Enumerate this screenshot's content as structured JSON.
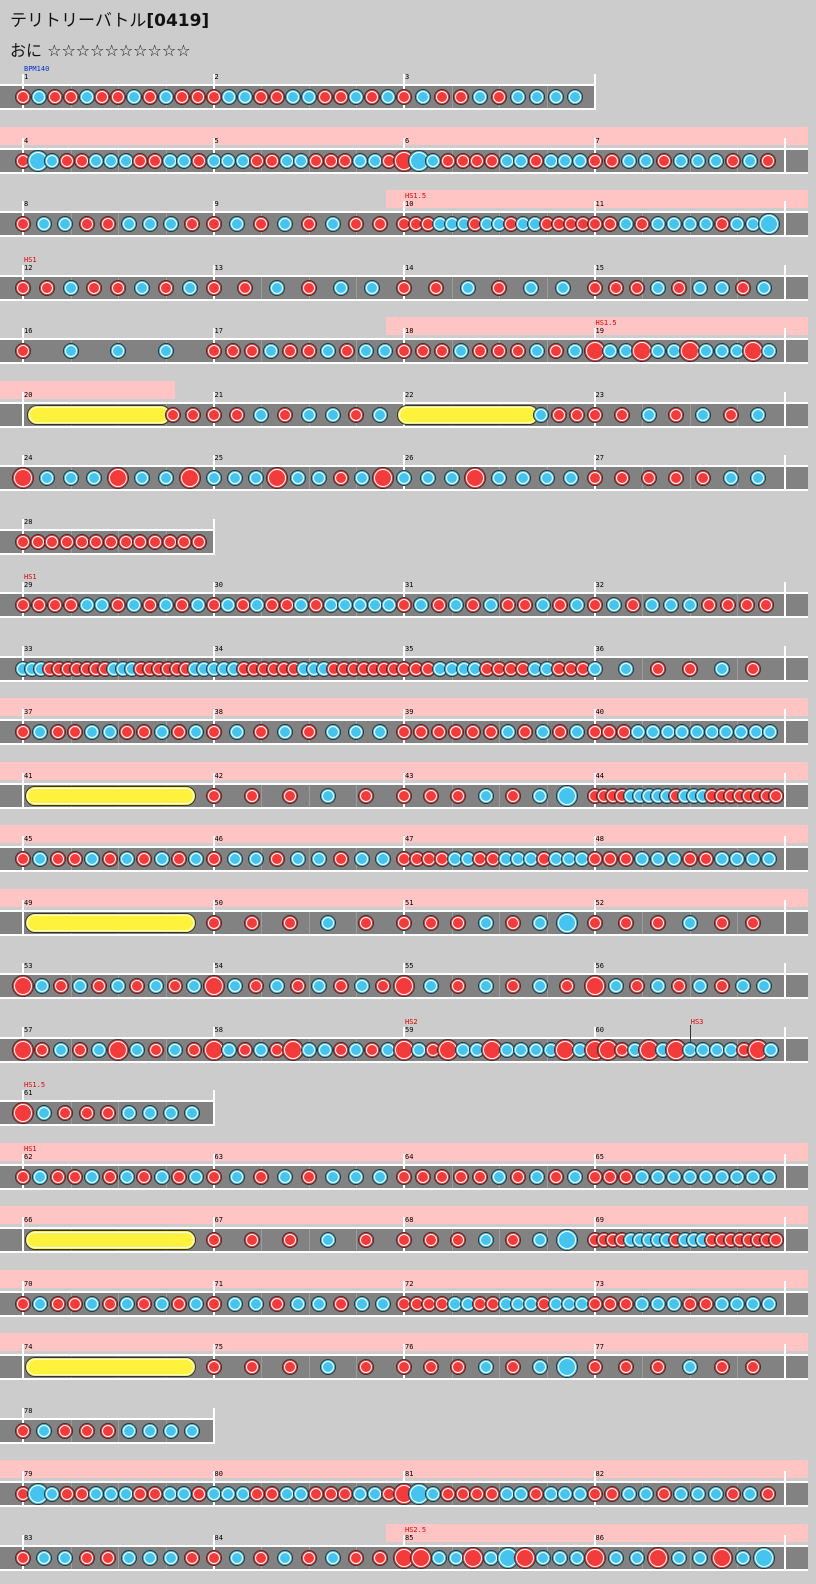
{
  "header": {
    "title": "テリトリーバトル",
    "song_id": "[0419]",
    "difficulty_label": "おに",
    "stars": "☆☆☆☆☆☆☆☆☆☆",
    "star_count": 10
  },
  "colors": {
    "background": "#cccccc",
    "lane": "#828282",
    "highlight": "#ffc4c4",
    "don": "#f43b3b",
    "ka": "#44c4ee",
    "roll": "#fff23c",
    "event_text": "#e00000",
    "bpm_text": "#0030d0"
  },
  "rows": [
    {
      "measures": [
        1,
        2,
        3
      ],
      "events": [
        {
          "m": 1,
          "text": "BPM140",
          "bpm": true
        }
      ],
      "hl": null,
      "end": 3,
      "notes": [
        "1D",
        "1K",
        "1D",
        "1D",
        "1K",
        "1D",
        "1D",
        "1K",
        "1D",
        "1K",
        "1D",
        "1D",
        "2D",
        "2K",
        "2K",
        "2D",
        "2D",
        "2K",
        "2K",
        "2D",
        "2D",
        "2K",
        "2D",
        "2K",
        "3D",
        "3K",
        "3D",
        "3D",
        "3K",
        "3D",
        "3K",
        "3K",
        "3K",
        "3K"
      ]
    },
    {
      "measures": [
        4,
        5,
        6,
        7
      ],
      "events": [],
      "hl": [
        0,
        4
      ],
      "notes": [
        "4D",
        "4BK",
        "4K",
        "4D",
        "4D",
        "4K",
        "4K",
        "4K",
        "4D",
        "4D",
        "4K",
        "4K",
        "4D",
        "5K",
        "5K",
        "5K",
        "5D",
        "5D",
        "5K",
        "5K",
        "5D",
        "5D",
        "5D",
        "5K",
        "5K",
        "5D",
        "6BD",
        "6BK",
        "6K",
        "6D",
        "6D",
        "6D",
        "6D",
        "6K",
        "6K",
        "6D",
        "6K",
        "6K",
        "6K",
        "7D",
        "7D",
        "7K",
        "7K",
        "7D",
        "7K",
        "7K",
        "7K",
        "7D",
        "7K",
        "7D"
      ]
    },
    {
      "measures": [
        8,
        9,
        10,
        11
      ],
      "events": [
        {
          "m": 10,
          "text": "HS1.5"
        }
      ],
      "hl": [
        2,
        4
      ],
      "notes": [
        "8D",
        "8K",
        "8K",
        "8D",
        "8D",
        "8K",
        "8K",
        "8K",
        "8D",
        "9D",
        "9K",
        "9D",
        "9K",
        "9D",
        "9K",
        "9D",
        "9D",
        "10D",
        "10D",
        "10D",
        "10K",
        "10K",
        "10K",
        "10D",
        "10K",
        "10K",
        "10D",
        "10K",
        "10K",
        "10D",
        "10D",
        "10D",
        "10D",
        "11D",
        "11D",
        "11K",
        "11D",
        "11K",
        "11K",
        "11K",
        "11K",
        "11D",
        "11K",
        "11K",
        "11BK"
      ]
    },
    {
      "measures": [
        12,
        13,
        14,
        15
      ],
      "events": [
        {
          "m": 12,
          "text": "HS1"
        }
      ],
      "hl": null,
      "notes": [
        "12D",
        "12D",
        "12K",
        "12D",
        "12D",
        "12K",
        "12D",
        "12K",
        "13D",
        "13D",
        "13K",
        "13D",
        "13K",
        "13K",
        "14D",
        "14D",
        "14K",
        "14D",
        "14K",
        "14K",
        "15D",
        "15D",
        "15D",
        "15K",
        "15D",
        "15K",
        "15K",
        "15D",
        "15K"
      ]
    },
    {
      "measures": [
        16,
        17,
        18,
        19
      ],
      "events": [
        {
          "m": 19,
          "text": "HS1.5"
        }
      ],
      "hl": [
        2,
        4
      ],
      "notes": [
        "16D",
        "16K",
        "16K",
        "16K",
        "17D",
        "17D",
        "17D",
        "17K",
        "17D",
        "17D",
        "17K",
        "17D",
        "17K",
        "17K",
        "18D",
        "18D",
        "18D",
        "18K",
        "18D",
        "18D",
        "18D",
        "18K",
        "18D",
        "18K",
        "19BD",
        "19K",
        "19K",
        "19BD",
        "19K",
        "19K",
        "19BD",
        "19K",
        "19K",
        "19K",
        "19BD",
        "19K"
      ]
    },
    {
      "measures": [
        20,
        21,
        22,
        23
      ],
      "events": [],
      "hl": [
        0,
        0.8
      ],
      "rolls": [
        [
          0.08,
          0.72
        ],
        [
          2.02,
          2.65
        ]
      ],
      "notes": [
        "20D",
        "20D",
        "21D",
        "21D",
        "21K",
        "21D",
        "21K",
        "21K",
        "21D",
        "21K",
        "22K",
        "22D",
        "22D",
        "23D",
        "23D",
        "23K",
        "23D",
        "23K",
        "23D",
        "23K"
      ]
    },
    {
      "measures": [
        24,
        25,
        26,
        27
      ],
      "events": [],
      "hl": null,
      "notes": [
        "24BD",
        "24K",
        "24K",
        "24K",
        "24BD",
        "24K",
        "24K",
        "24BD",
        "25K",
        "25K",
        "25K",
        "25BD",
        "25K",
        "25K",
        "25D",
        "25K",
        "25BD",
        "26K",
        "26K",
        "26K",
        "26BD",
        "26K",
        "26K",
        "26K",
        "26K",
        "27D",
        "27D",
        "27D",
        "27D",
        "27D",
        "27K",
        "27K"
      ]
    },
    {
      "measures": [
        28
      ],
      "events": [],
      "hl": null,
      "end": 1,
      "notes": [
        "28D",
        "28D",
        "28D",
        "28D",
        "28D",
        "28D",
        "28D",
        "28D",
        "28D",
        "28D",
        "28D",
        "28D",
        "28D"
      ]
    },
    {
      "measures": [
        29,
        30,
        31,
        32
      ],
      "events": [
        {
          "m": 29,
          "text": "HS1"
        }
      ],
      "hl": null,
      "notes": [
        "29D",
        "29D",
        "29D",
        "29D",
        "29K",
        "29K",
        "29D",
        "29K",
        "29D",
        "29K",
        "29D",
        "29K",
        "30D",
        "30K",
        "30D",
        "30K",
        "30D",
        "30D",
        "30K",
        "30D",
        "30K",
        "30K",
        "30K",
        "30K",
        "30K",
        "31D",
        "31K",
        "31D",
        "31K",
        "31D",
        "31K",
        "31D",
        "31D",
        "31K",
        "31D",
        "31K",
        "32D",
        "32K",
        "32D",
        "32K",
        "32K",
        "32K",
        "32D",
        "32D",
        "32D",
        "32D"
      ]
    },
    {
      "measures": [
        33,
        34,
        35,
        36
      ],
      "events": [],
      "hl": null,
      "notes": [
        "33K",
        "33K",
        "33K",
        "33D",
        "33D",
        "33D",
        "33D",
        "33D",
        "33D",
        "33D",
        "33K",
        "33K",
        "33K",
        "33D",
        "33D",
        "33D",
        "33D",
        "33D",
        "33D",
        "33K",
        "33K",
        "34K",
        "34K",
        "34K",
        "34D",
        "34D",
        "34D",
        "34D",
        "34D",
        "34D",
        "34K",
        "34K",
        "34K",
        "34D",
        "34D",
        "34D",
        "34D",
        "34D",
        "34D",
        "34D",
        "35D",
        "35D",
        "35D",
        "35K",
        "35K",
        "35K",
        "35K",
        "35D",
        "35D",
        "35D",
        "35D",
        "35K",
        "35K",
        "35D",
        "35D",
        "35D",
        "36K",
        "36K",
        "36D",
        "36D",
        "36K",
        "36D"
      ]
    },
    {
      "measures": [
        37,
        38,
        39,
        40
      ],
      "events": [],
      "hl": [
        0,
        4
      ],
      "notes": [
        "37D",
        "37K",
        "37D",
        "37D",
        "37K",
        "37K",
        "37D",
        "37D",
        "37K",
        "37D",
        "37K",
        "38D",
        "38K",
        "38D",
        "38K",
        "38D",
        "38K",
        "38K",
        "38K",
        "39D",
        "39D",
        "39D",
        "39D",
        "39D",
        "39D",
        "39K",
        "39D",
        "39K",
        "39D",
        "39K",
        "40D",
        "40D",
        "40D",
        "40K",
        "40K",
        "40K",
        "40K",
        "40K",
        "40K",
        "40K",
        "40K",
        "40K",
        "40K"
      ]
    },
    {
      "measures": [
        41,
        42,
        43,
        44
      ],
      "events": [],
      "hl": [
        0,
        4
      ],
      "rolls": [
        [
          0.07,
          0.85
        ]
      ],
      "notes": [
        "42D",
        "42D",
        "42D",
        "42K",
        "42D",
        "43D",
        "43D",
        "43D",
        "43K",
        "43D",
        "43K",
        "43BK",
        "44D",
        "44D",
        "44D",
        "44D",
        "44K",
        "44K",
        "44K",
        "44K",
        "44K",
        "44D",
        "44K",
        "44K",
        "44K",
        "44D",
        "44D",
        "44D",
        "44D",
        "44D",
        "44D",
        "44D",
        "44D"
      ]
    },
    {
      "measures": [
        45,
        46,
        47,
        48
      ],
      "events": [],
      "hl": [
        0,
        4
      ],
      "notes": [
        "45D",
        "45K",
        "45D",
        "45D",
        "45K",
        "45D",
        "45K",
        "45D",
        "45K",
        "45D",
        "45K",
        "46D",
        "46K",
        "46K",
        "46D",
        "46K",
        "46K",
        "46D",
        "46K",
        "46K",
        "47D",
        "47D",
        "47D",
        "47D",
        "47K",
        "47K",
        "47D",
        "47D",
        "47K",
        "47K",
        "47K",
        "47D",
        "47K",
        "47K",
        "47K",
        "48D",
        "48D",
        "48D",
        "48K",
        "48K",
        "48K",
        "48D",
        "48D",
        "48K",
        "48K",
        "48K",
        "48K"
      ]
    },
    {
      "measures": [
        49,
        50,
        51,
        52
      ],
      "events": [],
      "hl": [
        0,
        4
      ],
      "rolls": [
        [
          0.07,
          0.85
        ]
      ],
      "notes": [
        "50D",
        "50D",
        "50D",
        "50K",
        "50D",
        "51D",
        "51D",
        "51D",
        "51K",
        "51D",
        "51K",
        "51BK",
        "52D",
        "52D",
        "52D",
        "52K",
        "52D",
        "52D"
      ]
    },
    {
      "measures": [
        53,
        54,
        55,
        56
      ],
      "events": [],
      "hl": null,
      "notes": [
        "53BD",
        "53K",
        "53D",
        "53K",
        "53D",
        "53K",
        "53D",
        "53K",
        "53D",
        "53K",
        "54BD",
        "54K",
        "54D",
        "54K",
        "54D",
        "54K",
        "54D",
        "54K",
        "54D",
        "55BD",
        "55K",
        "55D",
        "55K",
        "55D",
        "55K",
        "55D",
        "56BD",
        "56K",
        "56D",
        "56K",
        "56D",
        "56K",
        "56D",
        "56K",
        "56K"
      ]
    },
    {
      "measures": [
        57,
        58,
        59,
        60
      ],
      "events": [
        {
          "m": 59,
          "text": "HS2"
        },
        {
          "m": 60,
          "text": "HS3",
          "at": 0.5
        }
      ],
      "hl": null,
      "notes": [
        "57BD",
        "57D",
        "57K",
        "57D",
        "57K",
        "57BD",
        "57K",
        "57D",
        "57K",
        "57D",
        "58BD",
        "58K",
        "58D",
        "58K",
        "58D",
        "58BD",
        "58K",
        "58K",
        "58D",
        "58K",
        "58D",
        "58K",
        "59BD",
        "59K",
        "59D",
        "59BD",
        "59K",
        "59K",
        "59BD",
        "59K",
        "59K",
        "59K",
        "59K",
        "59BD",
        "59K",
        "60BD",
        "60BD",
        "60D",
        "60K",
        "60BD",
        "60K",
        "60BD",
        "60K",
        "60K",
        "60K",
        "60K",
        "60D",
        "60BD",
        "60K"
      ]
    },
    {
      "measures": [
        61
      ],
      "events": [
        {
          "m": 61,
          "text": "HS1.5"
        }
      ],
      "hl": null,
      "end": 1,
      "notes": [
        "61BD",
        "61K",
        "61D",
        "61D",
        "61D",
        "61K",
        "61K",
        "61K",
        "61K"
      ]
    },
    {
      "measures": [
        62,
        63,
        64,
        65
      ],
      "events": [
        {
          "m": 62,
          "text": "HS1"
        }
      ],
      "hl": [
        0,
        4
      ],
      "notes": [
        "62D",
        "62K",
        "62D",
        "62D",
        "62K",
        "62D",
        "62K",
        "62D",
        "62K",
        "62D",
        "62K",
        "63D",
        "63K",
        "63D",
        "63K",
        "63D",
        "63K",
        "63K",
        "63K",
        "64D",
        "64D",
        "64D",
        "64D",
        "64D",
        "64K",
        "64D",
        "64K",
        "64D",
        "64K",
        "65D",
        "65D",
        "65D",
        "65K",
        "65K",
        "65K",
        "65K",
        "65K",
        "65K",
        "65K",
        "65K",
        "65K"
      ]
    },
    {
      "measures": [
        66,
        67,
        68,
        69
      ],
      "events": [],
      "hl": [
        0,
        4
      ],
      "rolls": [
        [
          0.07,
          0.85
        ]
      ],
      "notes": [
        "67D",
        "67D",
        "67D",
        "67K",
        "67D",
        "68D",
        "68D",
        "68D",
        "68K",
        "68D",
        "68K",
        "68BK",
        "69D",
        "69D",
        "69D",
        "69D",
        "69K",
        "69K",
        "69K",
        "69K",
        "69K",
        "69D",
        "69K",
        "69K",
        "69K",
        "69D",
        "69D",
        "69D",
        "69D",
        "69D",
        "69D",
        "69D",
        "69D"
      ]
    },
    {
      "measures": [
        70,
        71,
        72,
        73
      ],
      "events": [],
      "hl": [
        0,
        4
      ],
      "notes": [
        "70D",
        "70K",
        "70D",
        "70D",
        "70K",
        "70D",
        "70K",
        "70D",
        "70K",
        "70D",
        "70K",
        "71D",
        "71K",
        "71K",
        "71D",
        "71K",
        "71K",
        "71D",
        "71K",
        "71K",
        "72D",
        "72D",
        "72D",
        "72D",
        "72K",
        "72K",
        "72D",
        "72D",
        "72K",
        "72K",
        "72K",
        "72D",
        "72K",
        "72K",
        "72K",
        "73D",
        "73D",
        "73D",
        "73K",
        "73K",
        "73K",
        "73D",
        "73D",
        "73K",
        "73K",
        "73K",
        "73K"
      ]
    },
    {
      "measures": [
        74,
        75,
        76,
        77
      ],
      "events": [],
      "hl": [
        0,
        4
      ],
      "rolls": [
        [
          0.07,
          0.85
        ]
      ],
      "notes": [
        "75D",
        "75D",
        "75D",
        "75K",
        "75D",
        "76D",
        "76D",
        "76D",
        "76K",
        "76D",
        "76K",
        "76BK",
        "77D",
        "77D",
        "77D",
        "77K",
        "77D",
        "77D"
      ]
    },
    {
      "measures": [
        78
      ],
      "events": [],
      "hl": null,
      "end": 1,
      "notes": [
        "78D",
        "78K",
        "78D",
        "78D",
        "78D",
        "78K",
        "78K",
        "78K",
        "78K"
      ]
    },
    {
      "measures": [
        79,
        80,
        81,
        82
      ],
      "events": [],
      "hl": [
        0,
        4
      ],
      "notes": [
        "79D",
        "79BK",
        "79K",
        "79D",
        "79D",
        "79K",
        "79K",
        "79K",
        "79D",
        "79D",
        "79K",
        "79K",
        "79D",
        "80K",
        "80K",
        "80K",
        "80D",
        "80D",
        "80K",
        "80K",
        "80D",
        "80D",
        "80D",
        "80K",
        "80K",
        "80D",
        "81BD",
        "81BK",
        "81K",
        "81D",
        "81D",
        "81D",
        "81D",
        "81K",
        "81K",
        "81D",
        "81K",
        "81K",
        "81K",
        "82D",
        "82D",
        "82K",
        "82K",
        "82D",
        "82K",
        "82K",
        "82K",
        "82D",
        "82K",
        "82D"
      ]
    },
    {
      "measures": [
        83,
        84,
        85,
        86
      ],
      "events": [
        {
          "m": 85,
          "text": "HS2.5"
        }
      ],
      "hl": [
        2,
        4
      ],
      "notes": [
        "83D",
        "83K",
        "83K",
        "83D",
        "83D",
        "83K",
        "83K",
        "83K",
        "83D",
        "84D",
        "84K",
        "84D",
        "84K",
        "84D",
        "84K",
        "84D",
        "84D",
        "85BD",
        "85BD",
        "85K",
        "85K",
        "85BD",
        "85K",
        "85BK",
        "85BD",
        "85K",
        "85K",
        "85K",
        "86BD",
        "86K",
        "86K",
        "86BD",
        "86K",
        "86K",
        "86BD",
        "86K",
        "86BK"
      ]
    }
  ]
}
